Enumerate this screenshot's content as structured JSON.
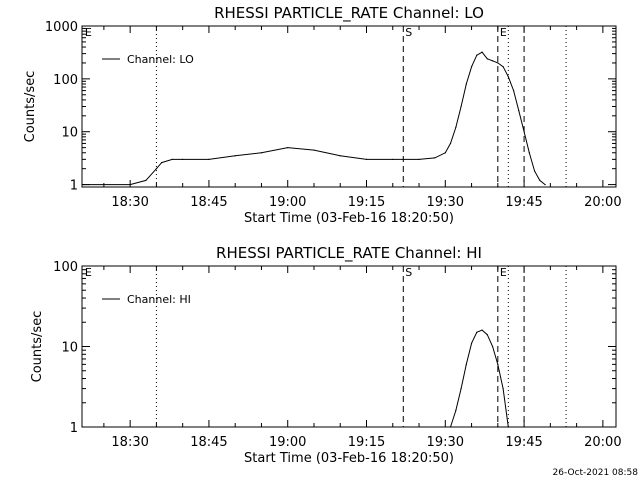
{
  "footer": {
    "timestamp": "26-Oct-2021 08:58"
  },
  "chart_data": [
    {
      "type": "line",
      "title": "RHESSI PARTICLE_RATE Channel: LO",
      "xlabel": "Start Time (03-Feb-16 18:20:50)",
      "ylabel": "Counts/sec",
      "y_scale": "log",
      "ylim": [
        0.9,
        1000
      ],
      "xlim": [
        "18:20:50",
        "20:02:30"
      ],
      "x_ticks": [
        "18:30",
        "18:45",
        "19:00",
        "19:15",
        "19:30",
        "19:45",
        "20:00"
      ],
      "y_ticks": [
        "1",
        "10",
        "100",
        "1000"
      ],
      "legend": {
        "label": "Channel: LO",
        "position": "top-left"
      },
      "markers": [
        {
          "label": "E",
          "time": "18:21"
        },
        {
          "label": "S",
          "time": "19:22"
        },
        {
          "label": "E",
          "time": "19:40"
        },
        {
          "label": "",
          "time": "19:45"
        }
      ],
      "dotted_lines": [
        "18:35",
        "19:42",
        "19:53"
      ],
      "series": [
        {
          "name": "Channel: LO",
          "x": [
            "18:21",
            "18:30",
            "18:33",
            "18:35",
            "18:36",
            "18:38",
            "18:40",
            "18:45",
            "18:50",
            "18:55",
            "19:00",
            "19:05",
            "19:10",
            "19:15",
            "19:20",
            "19:22",
            "19:25",
            "19:28",
            "19:30",
            "19:31",
            "19:32",
            "19:33",
            "19:34",
            "19:35",
            "19:36",
            "19:37",
            "19:38",
            "19:39",
            "19:40",
            "19:41",
            "19:42",
            "19:43",
            "19:44",
            "19:45",
            "19:46",
            "19:47",
            "19:48",
            "19:49"
          ],
          "values": [
            1,
            1,
            1.2,
            2,
            2.6,
            3,
            3,
            3,
            3.5,
            4,
            5,
            4.5,
            3.5,
            3,
            3,
            3,
            3,
            3.2,
            4,
            6,
            12,
            30,
            80,
            170,
            280,
            320,
            240,
            220,
            200,
            170,
            110,
            60,
            25,
            10,
            4,
            1.8,
            1.2,
            1
          ]
        }
      ]
    },
    {
      "type": "line",
      "title": "RHESSI PARTICLE_RATE Channel: HI",
      "xlabel": "Start Time (03-Feb-16 18:20:50)",
      "ylabel": "Counts/sec",
      "y_scale": "log",
      "ylim": [
        1,
        100
      ],
      "xlim": [
        "18:20:50",
        "20:02:30"
      ],
      "x_ticks": [
        "18:30",
        "18:45",
        "19:00",
        "19:15",
        "19:30",
        "19:45",
        "20:00"
      ],
      "y_ticks": [
        "1",
        "10",
        "100"
      ],
      "legend": {
        "label": "Channel: HI",
        "position": "top-left"
      },
      "markers": [
        {
          "label": "E",
          "time": "18:21"
        },
        {
          "label": "S",
          "time": "19:22"
        },
        {
          "label": "E",
          "time": "19:40"
        },
        {
          "label": "",
          "time": "19:45"
        }
      ],
      "dotted_lines": [
        "18:35",
        "19:42",
        "19:53"
      ],
      "series": [
        {
          "name": "Channel: HI",
          "x": [
            "19:31",
            "19:32",
            "19:33",
            "19:34",
            "19:35",
            "19:36",
            "19:37",
            "19:38",
            "19:39",
            "19:40",
            "19:41",
            "19:42"
          ],
          "values": [
            1,
            1.6,
            3,
            6,
            11,
            15,
            16,
            14,
            10,
            6,
            3,
            1
          ]
        }
      ]
    }
  ]
}
